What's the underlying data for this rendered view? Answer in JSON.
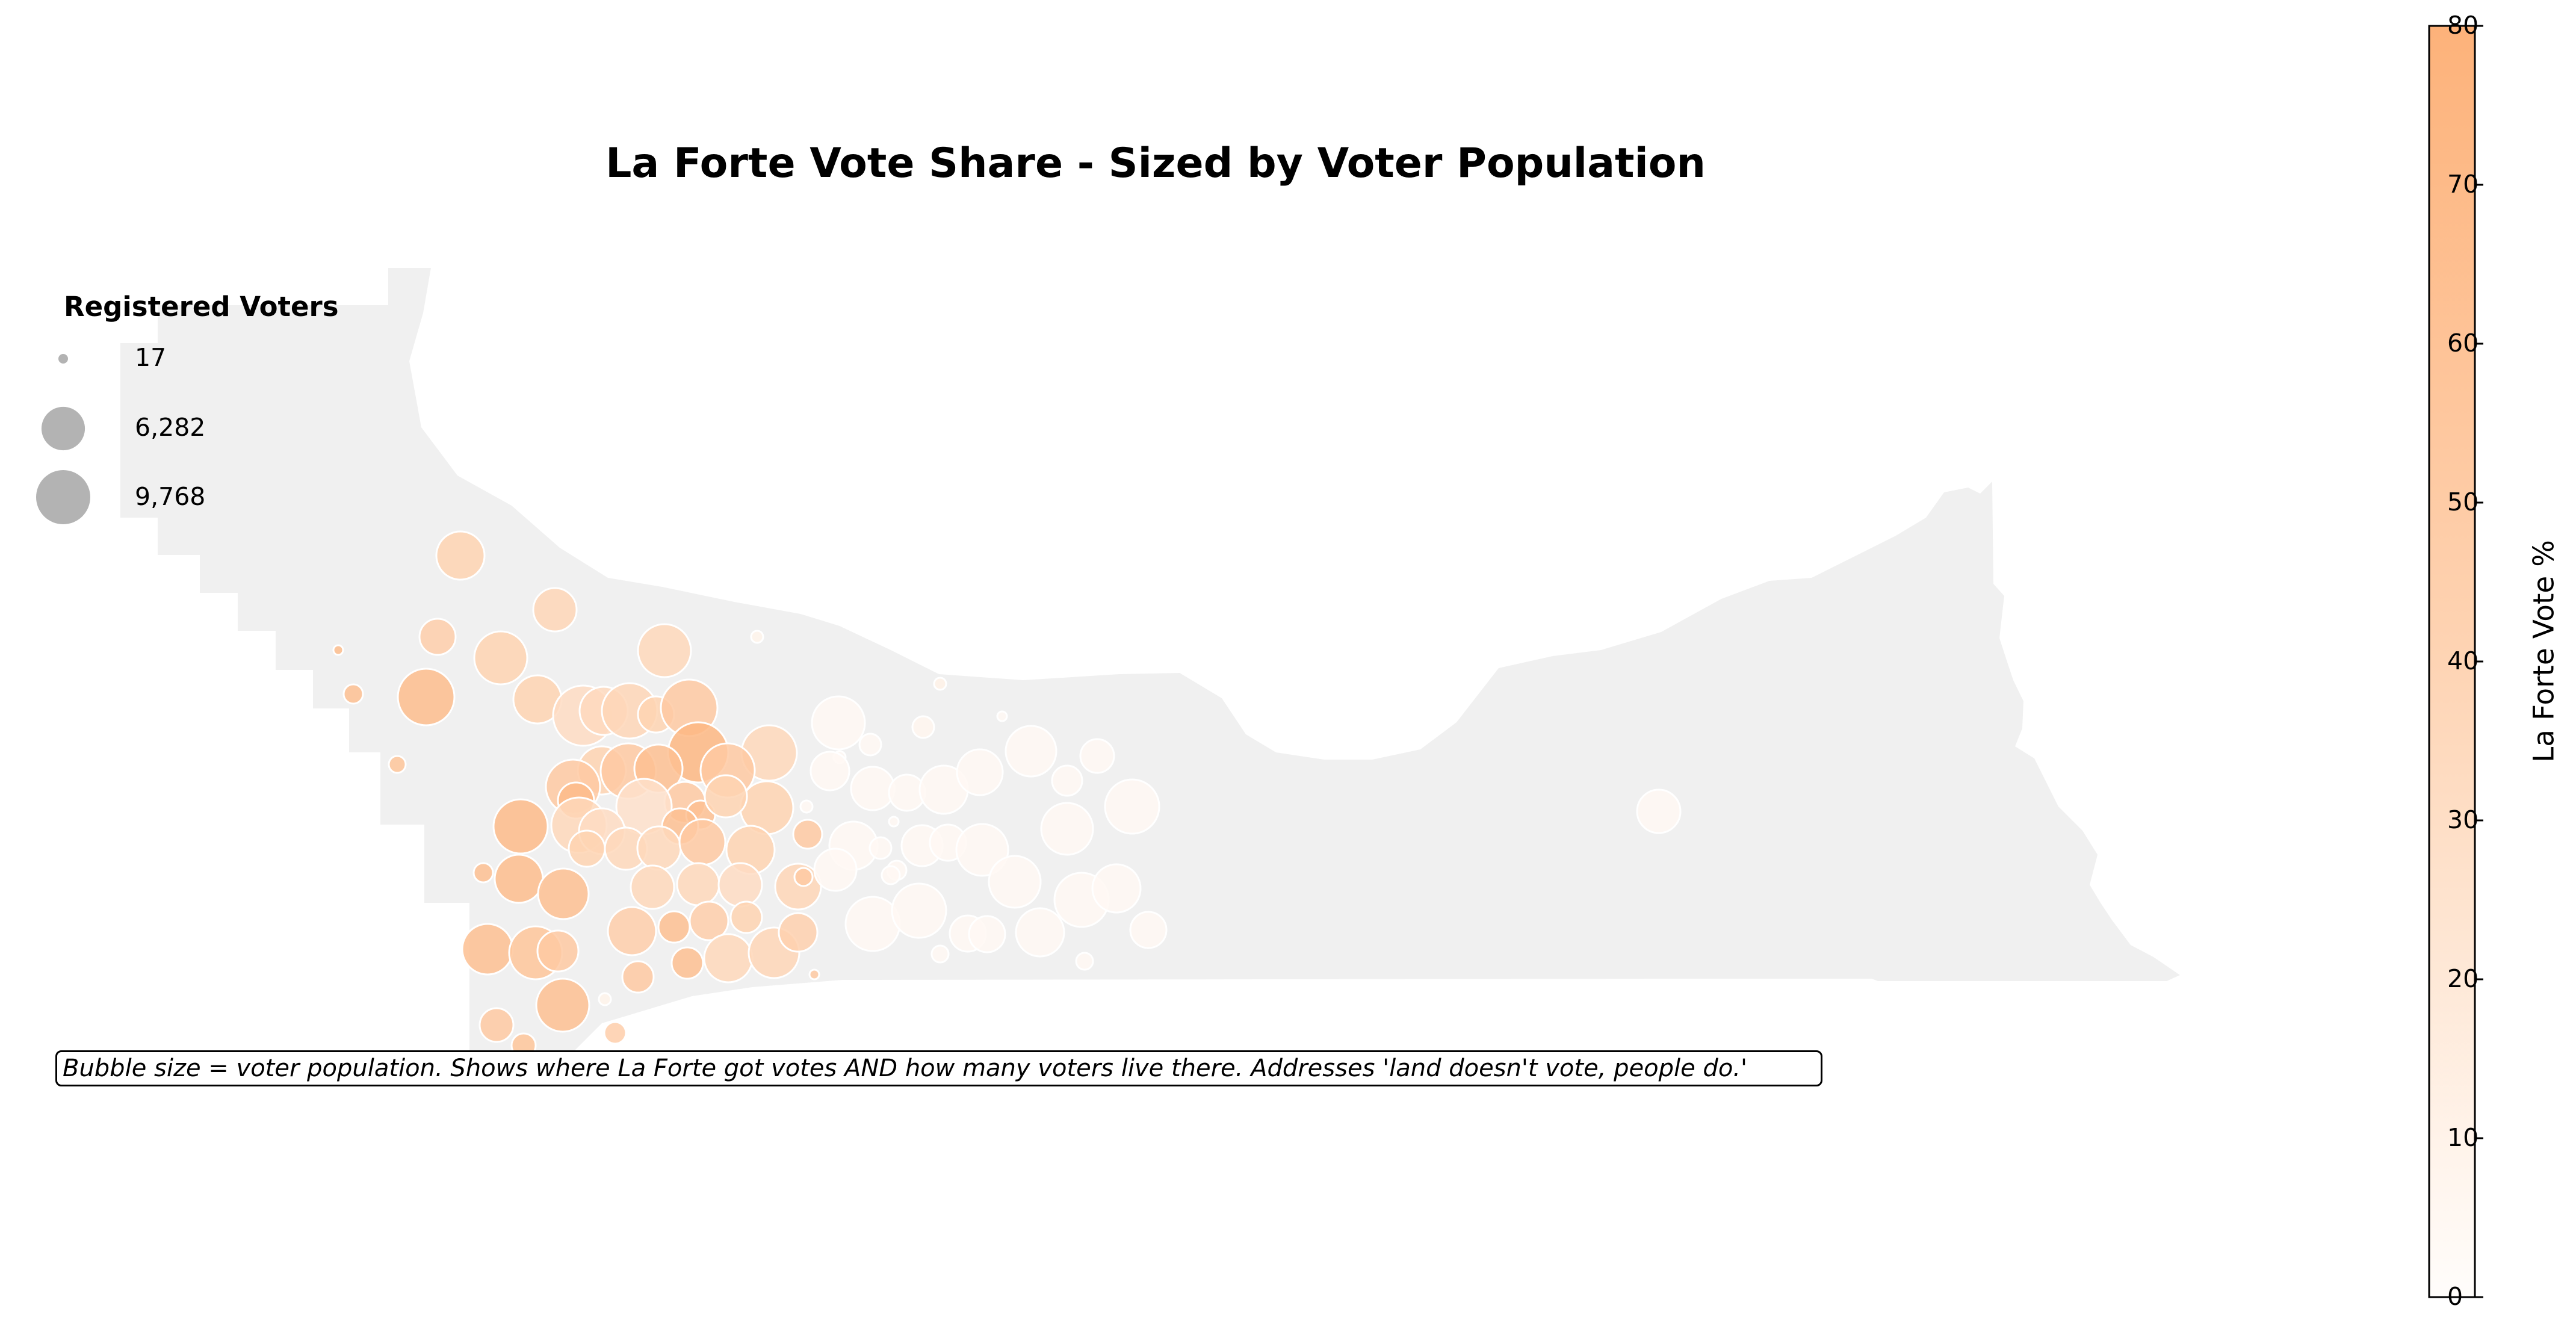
{
  "title": "La Forte Vote Share - Sized by Voter Population",
  "legend": {
    "title": "Registered Voters",
    "entries": [
      {
        "label": "17",
        "voters": 17
      },
      {
        "label": "6,282",
        "voters": 6282
      },
      {
        "label": "9,768",
        "voters": 9768
      }
    ],
    "marker_color": "#b3b3b3"
  },
  "colorbar": {
    "label": "La Forte Vote %",
    "min": 0,
    "max": 80,
    "ticks": [
      "0",
      "10",
      "20",
      "30",
      "40",
      "50",
      "60",
      "70",
      "80"
    ],
    "color_low": "#fffdfb",
    "color_high": "#fdb27a"
  },
  "annotation": "Bubble size = voter population. Shows where La Forte got votes AND how many voters live there. Addresses 'land doesn't vote, people do.'",
  "map": {
    "region_fill": "#f0f0f0",
    "bubble_edge": "#ffffff"
  }
}
